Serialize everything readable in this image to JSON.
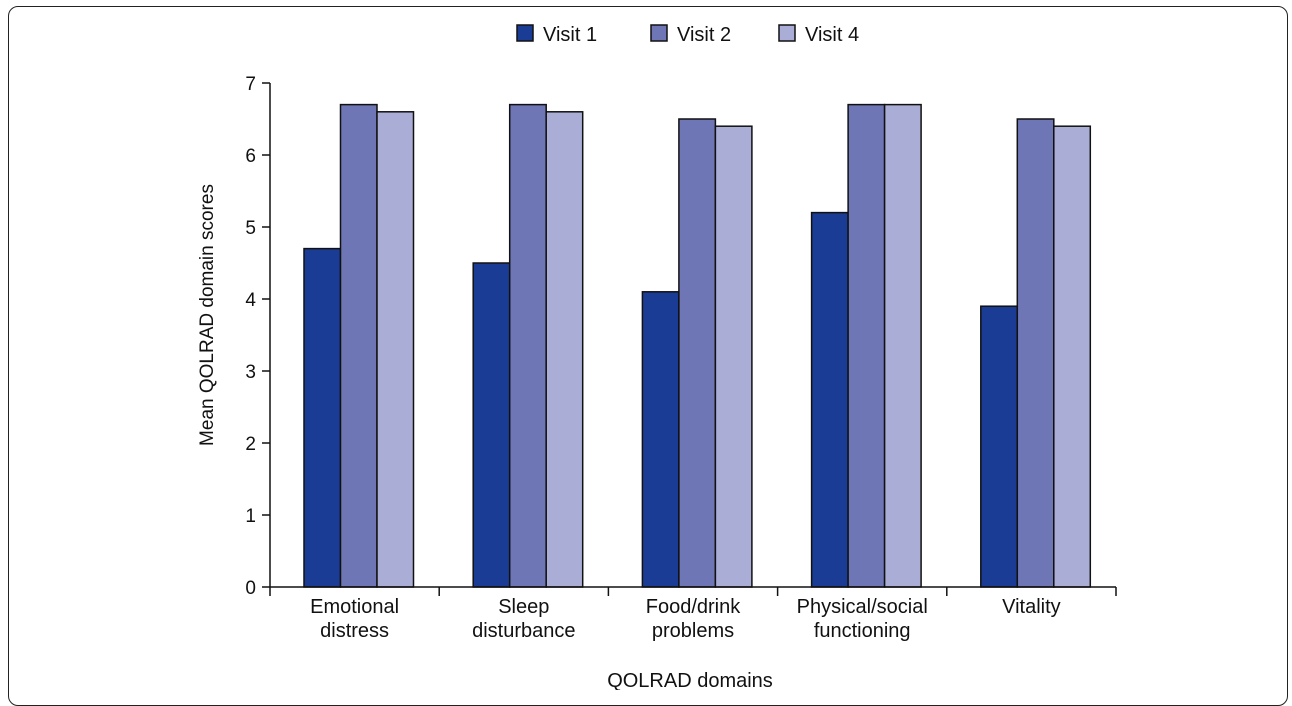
{
  "chart_data": {
    "type": "bar",
    "title": "",
    "xlabel": "QOLRAD domains",
    "ylabel": "Mean QOLRAD domain scores",
    "ylim": [
      0,
      7
    ],
    "yticks": [
      "0",
      "1",
      "2",
      "3",
      "4",
      "5",
      "6",
      "7"
    ],
    "categories": [
      [
        "Emotional",
        "distress"
      ],
      [
        "Sleep",
        "disturbance"
      ],
      [
        "Food/drink",
        "problems"
      ],
      [
        "Physical/social",
        "functioning"
      ],
      [
        "Vitality"
      ]
    ],
    "series": [
      {
        "name": "Visit 1",
        "color": "#1b3c94",
        "values": [
          4.7,
          4.5,
          4.1,
          5.2,
          3.9
        ]
      },
      {
        "name": "Visit 2",
        "color": "#6e76b6",
        "values": [
          6.7,
          6.7,
          6.5,
          6.7,
          6.5
        ]
      },
      {
        "name": "Visit 4",
        "color": "#aaaed7",
        "values": [
          6.6,
          6.6,
          6.4,
          6.7,
          6.4
        ]
      }
    ],
    "legend_position": "top-center",
    "grid": false
  }
}
